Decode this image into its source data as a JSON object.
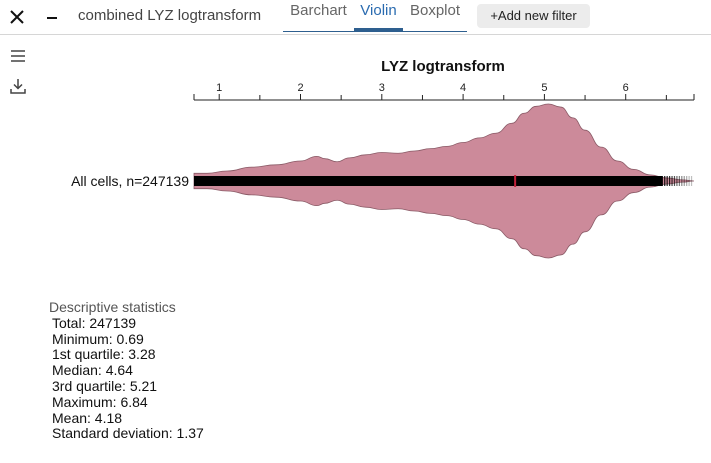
{
  "header": {
    "title": "combined LYZ logtransform",
    "tabs": [
      {
        "label": "Barchart",
        "active": false
      },
      {
        "label": "Violin",
        "active": true
      },
      {
        "label": "Boxplot",
        "active": false
      }
    ],
    "add_filter_label": "+Add new filter"
  },
  "sidebar": {
    "menu_icon": "hamburger-menu-icon",
    "download_icon": "download-icon"
  },
  "chart_data": {
    "type": "violin",
    "title": "LYZ logtransform",
    "xlim": [
      0.69,
      6.84
    ],
    "x_ticks": [
      1,
      2,
      3,
      4,
      5,
      6
    ],
    "series": [
      {
        "name": "All cells, n=247139",
        "color": "#cc8a9a",
        "median": 4.64,
        "min": 0.69,
        "max": 6.84,
        "density": [
          [
            0.69,
            0.1
          ],
          [
            0.85,
            0.1
          ],
          [
            1.1,
            0.13
          ],
          [
            1.4,
            0.18
          ],
          [
            1.7,
            0.21
          ],
          [
            2.0,
            0.26
          ],
          [
            2.2,
            0.32
          ],
          [
            2.3,
            0.29
          ],
          [
            2.45,
            0.25
          ],
          [
            2.6,
            0.3
          ],
          [
            2.8,
            0.34
          ],
          [
            3.0,
            0.37
          ],
          [
            3.2,
            0.36
          ],
          [
            3.4,
            0.39
          ],
          [
            3.6,
            0.42
          ],
          [
            3.8,
            0.45
          ],
          [
            4.0,
            0.5
          ],
          [
            4.2,
            0.56
          ],
          [
            4.4,
            0.62
          ],
          [
            4.6,
            0.75
          ],
          [
            4.75,
            0.88
          ],
          [
            4.9,
            0.97
          ],
          [
            5.05,
            1.0
          ],
          [
            5.2,
            0.96
          ],
          [
            5.35,
            0.82
          ],
          [
            5.5,
            0.66
          ],
          [
            5.7,
            0.44
          ],
          [
            5.9,
            0.26
          ],
          [
            6.1,
            0.15
          ],
          [
            6.3,
            0.08
          ],
          [
            6.5,
            0.04
          ],
          [
            6.7,
            0.015
          ],
          [
            6.84,
            0.0
          ]
        ]
      }
    ]
  },
  "stats": {
    "title": "Descriptive statistics",
    "lines": [
      "Total: 247139",
      "Minimum: 0.69",
      "1st quartile: 3.28",
      "Median: 4.64",
      "3rd quartile: 5.21",
      "Maximum: 6.84",
      "Mean: 4.18",
      "Standard deviation: 1.37"
    ]
  }
}
